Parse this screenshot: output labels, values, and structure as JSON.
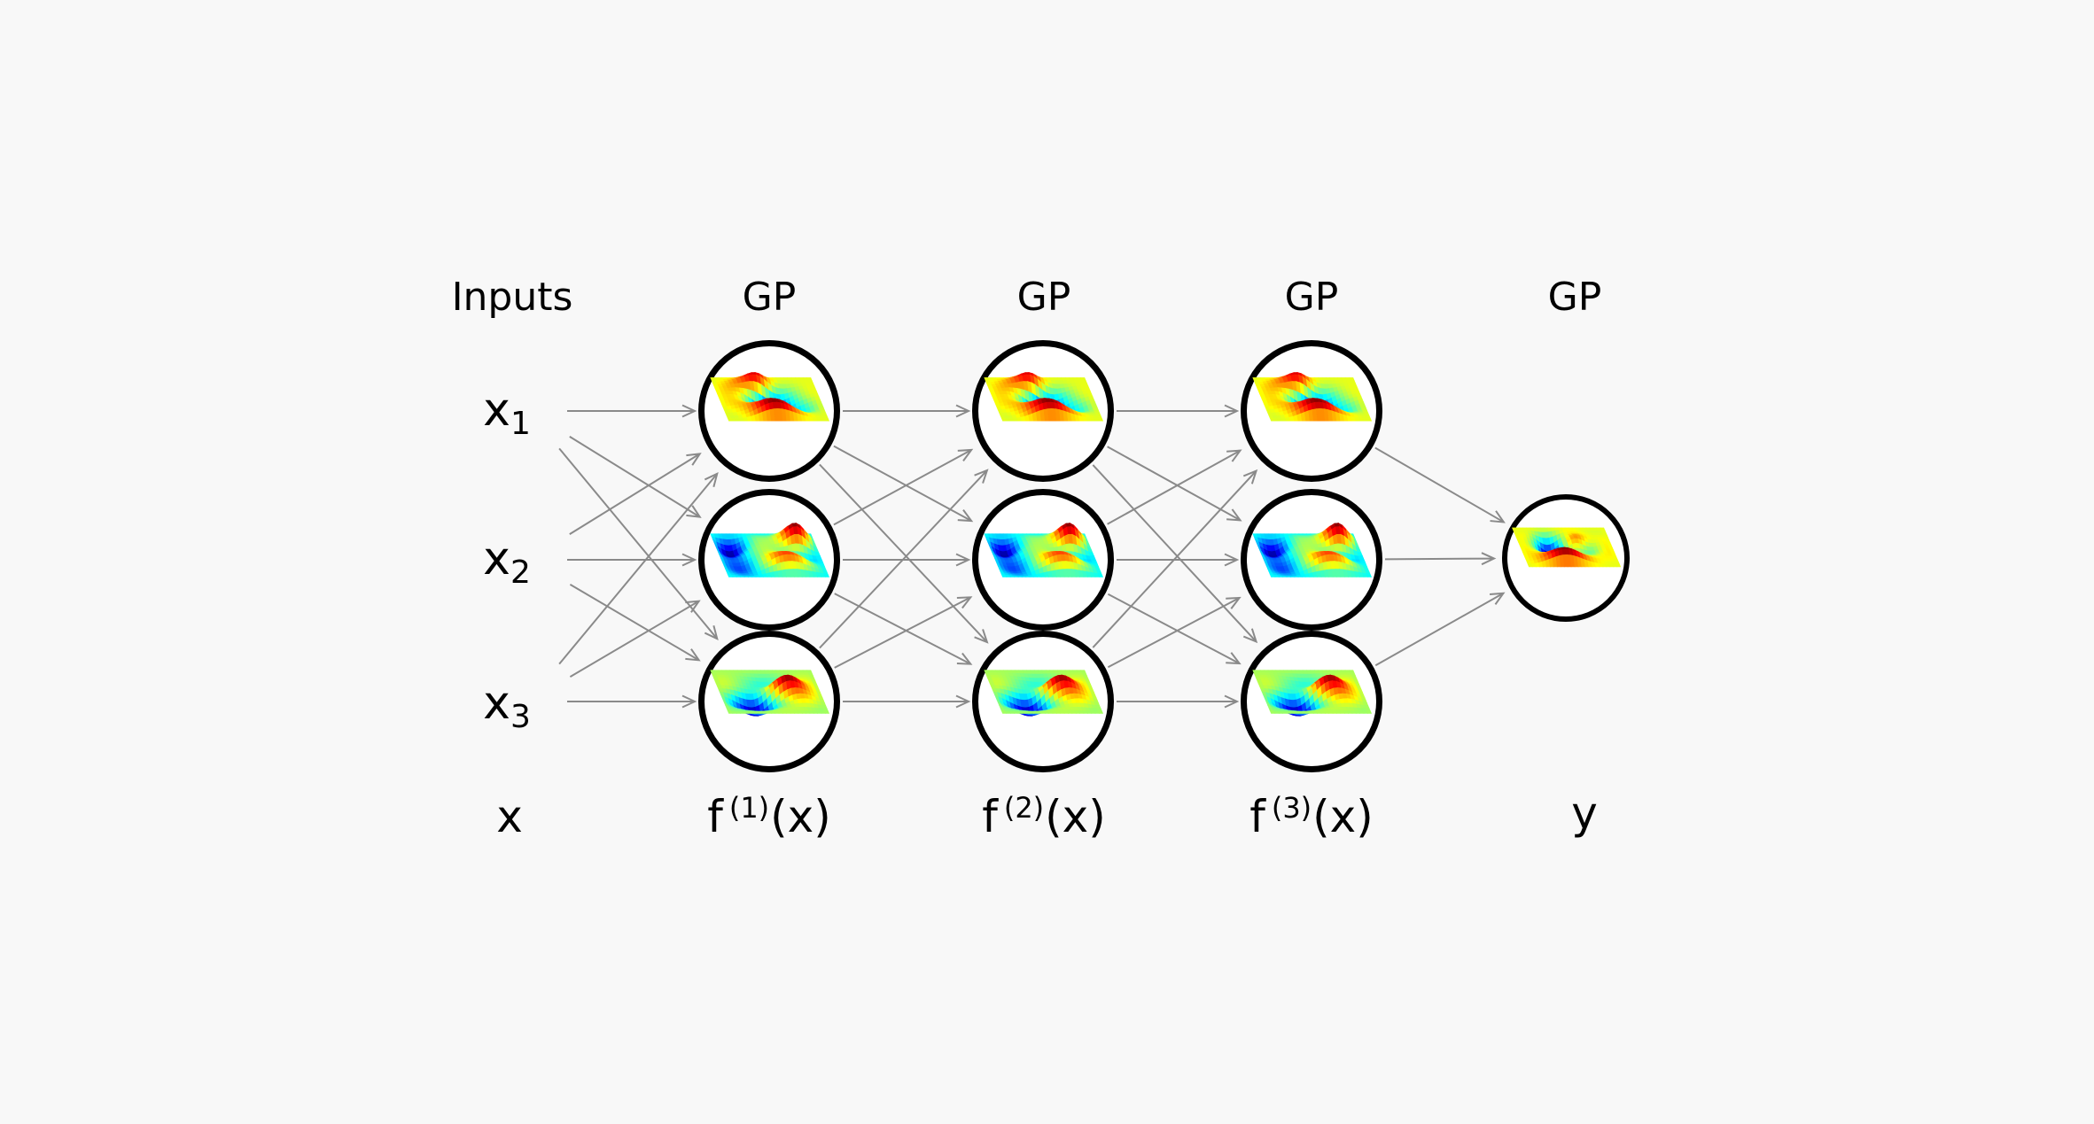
{
  "figure": {
    "background_color": "#f8f8f8",
    "arrow_color": "#8a8a8a",
    "node_border_color": "#000000",
    "node_fill_color": "#ffffff",
    "header": {
      "inputs_label": "Inputs"
    },
    "inputs": [
      {
        "base": "x",
        "sub": "1"
      },
      {
        "base": "x",
        "sub": "2"
      },
      {
        "base": "x",
        "sub": "3"
      }
    ],
    "input_column_bottom_label": "x",
    "hidden_layers": [
      {
        "header": "GP",
        "bottom_label": {
          "base": "f",
          "sup": "(1)",
          "arg": "(x)"
        },
        "node_count": 3
      },
      {
        "header": "GP",
        "bottom_label": {
          "base": "f",
          "sup": "(2)",
          "arg": "(x)"
        },
        "node_count": 3
      },
      {
        "header": "GP",
        "bottom_label": {
          "base": "f",
          "sup": "(3)",
          "arg": "(x)"
        },
        "node_count": 3
      }
    ],
    "output": {
      "header": "GP",
      "bottom_label": "y",
      "node_count": 1
    },
    "icons": {
      "node_surface": "gp-surface-plot"
    },
    "connectivity": "fully-connected"
  }
}
